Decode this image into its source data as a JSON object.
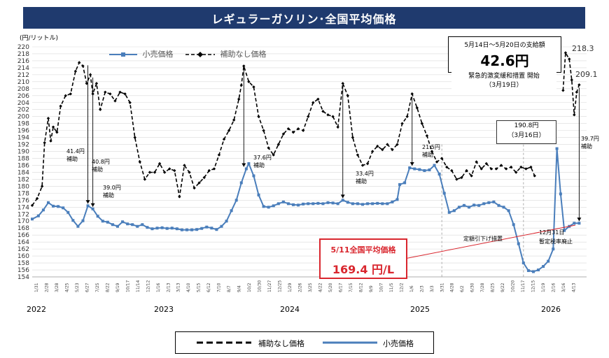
{
  "title": "レギュラーガソリン･全国平均価格",
  "yaxis_unit": "(円/リットル)",
  "legend": {
    "retail": "小売価格",
    "no_subsidy": "補助なし価格"
  },
  "infobox_subsidy": {
    "line1": "5月14日～5月20日の支給額",
    "line2": "42.6円"
  },
  "infobox_emergency": {
    "line1": "緊急的激変緩和措置 開始",
    "line2": "（3月19日）"
  },
  "infobox_price190": {
    "line1": "190.8円",
    "line2": "（3月16日）"
  },
  "current_price": {
    "line1": "5/11全国平均価格",
    "line2": "169.4 円/L"
  },
  "annotations": {
    "a1": "41.4円",
    "a1b": "補助",
    "a2": "40.8円",
    "a2b": "補助",
    "a3": "39.0円",
    "a3b": "補助",
    "a4": "37.6円",
    "a4b": "補助",
    "a5": "33.4円",
    "a5b": "補助",
    "a6": "21.5円",
    "a6b": "補助",
    "a7": "39.7円",
    "a7b": "補助",
    "fixed_cut": "定額引下げ措置",
    "dec31": "12月31日",
    "tax_abolish": "暫定税率廃止",
    "peak1": "218.3",
    "peak2": "209.1"
  },
  "years": [
    "2022",
    "2023",
    "2024",
    "2025",
    "2026"
  ],
  "chart_data": {
    "type": "line",
    "title": "レギュラーガソリン･全国平均価格",
    "ylabel": "(円/リットル)",
    "ylim": [
      154,
      220
    ],
    "yticks": [
      154,
      156,
      158,
      160,
      162,
      164,
      166,
      168,
      170,
      172,
      174,
      176,
      178,
      180,
      182,
      184,
      186,
      188,
      190,
      192,
      194,
      196,
      198,
      200,
      202,
      204,
      206,
      208,
      210,
      212,
      214,
      216,
      218,
      220
    ],
    "x_range": [
      2022.0,
      2026.48
    ],
    "grid": true,
    "series": [
      {
        "name": "小売価格",
        "color": "#4a7ebb",
        "points": [
          [
            2022.0,
            170.6
          ],
          [
            2022.05,
            171.5
          ],
          [
            2022.09,
            173.2
          ],
          [
            2022.13,
            175.3
          ],
          [
            2022.17,
            174.3
          ],
          [
            2022.21,
            174.2
          ],
          [
            2022.25,
            173.8
          ],
          [
            2022.29,
            172.5
          ],
          [
            2022.33,
            170.2
          ],
          [
            2022.37,
            168.5
          ],
          [
            2022.41,
            170.1
          ],
          [
            2022.45,
            174.4
          ],
          [
            2022.49,
            173.5
          ],
          [
            2022.53,
            171.4
          ],
          [
            2022.57,
            170.0
          ],
          [
            2022.61,
            169.7
          ],
          [
            2022.65,
            169.0
          ],
          [
            2022.69,
            168.5
          ],
          [
            2022.73,
            169.8
          ],
          [
            2022.77,
            169.2
          ],
          [
            2022.81,
            169.0
          ],
          [
            2022.85,
            168.5
          ],
          [
            2022.89,
            169.0
          ],
          [
            2022.93,
            168.2
          ],
          [
            2022.97,
            167.8
          ],
          [
            2023.01,
            168.0
          ],
          [
            2023.05,
            168.1
          ],
          [
            2023.09,
            167.9
          ],
          [
            2023.13,
            168.0
          ],
          [
            2023.17,
            167.8
          ],
          [
            2023.21,
            167.5
          ],
          [
            2023.25,
            167.5
          ],
          [
            2023.29,
            167.5
          ],
          [
            2023.33,
            167.6
          ],
          [
            2023.37,
            167.9
          ],
          [
            2023.41,
            168.3
          ],
          [
            2023.45,
            168.0
          ],
          [
            2023.49,
            167.6
          ],
          [
            2023.53,
            168.5
          ],
          [
            2023.57,
            170.0
          ],
          [
            2023.61,
            173.0
          ],
          [
            2023.65,
            176.0
          ],
          [
            2023.69,
            181.0
          ],
          [
            2023.73,
            185.0
          ],
          [
            2023.75,
            186.5
          ],
          [
            2023.79,
            183.0
          ],
          [
            2023.83,
            177.5
          ],
          [
            2023.87,
            174.2
          ],
          [
            2023.91,
            174.0
          ],
          [
            2023.95,
            174.4
          ],
          [
            2023.99,
            175.0
          ],
          [
            2024.03,
            175.5
          ],
          [
            2024.07,
            175.0
          ],
          [
            2024.11,
            174.7
          ],
          [
            2024.15,
            174.6
          ],
          [
            2024.19,
            174.9
          ],
          [
            2024.23,
            175.0
          ],
          [
            2024.27,
            175.0
          ],
          [
            2024.31,
            175.1
          ],
          [
            2024.35,
            175.0
          ],
          [
            2024.39,
            175.3
          ],
          [
            2024.43,
            175.2
          ],
          [
            2024.47,
            175.0
          ],
          [
            2024.51,
            176.0
          ],
          [
            2024.55,
            175.4
          ],
          [
            2024.59,
            175.0
          ],
          [
            2024.63,
            175.0
          ],
          [
            2024.67,
            174.8
          ],
          [
            2024.71,
            175.0
          ],
          [
            2024.75,
            175.0
          ],
          [
            2024.79,
            175.1
          ],
          [
            2024.83,
            175.0
          ],
          [
            2024.87,
            175.0
          ],
          [
            2024.91,
            175.5
          ],
          [
            2024.95,
            176.2
          ],
          [
            2024.97,
            180.5
          ],
          [
            2025.01,
            181.0
          ],
          [
            2025.05,
            185.3
          ],
          [
            2025.09,
            185.0
          ],
          [
            2025.13,
            184.8
          ],
          [
            2025.17,
            184.5
          ],
          [
            2025.21,
            184.7
          ],
          [
            2025.25,
            186.0
          ],
          [
            2025.29,
            183.5
          ],
          [
            2025.33,
            178.0
          ],
          [
            2025.37,
            172.5
          ],
          [
            2025.41,
            173.0
          ],
          [
            2025.45,
            174.0
          ],
          [
            2025.49,
            174.5
          ],
          [
            2025.53,
            174.0
          ],
          [
            2025.57,
            174.6
          ],
          [
            2025.61,
            174.5
          ],
          [
            2025.65,
            175.0
          ],
          [
            2025.69,
            175.3
          ],
          [
            2025.73,
            175.5
          ],
          [
            2025.77,
            174.5
          ],
          [
            2025.81,
            174.0
          ],
          [
            2025.85,
            173.0
          ],
          [
            2025.89,
            169.0
          ],
          [
            2025.93,
            163.5
          ],
          [
            2025.97,
            158.0
          ],
          [
            2026.01,
            155.8
          ],
          [
            2026.05,
            155.5
          ],
          [
            2026.09,
            156.0
          ],
          [
            2026.13,
            157.0
          ],
          [
            2026.17,
            158.5
          ],
          [
            2026.21,
            162.0
          ],
          [
            2026.24,
            190.8
          ],
          [
            2026.27,
            177.8
          ],
          [
            2026.3,
            167.3
          ],
          [
            2026.34,
            168.5
          ],
          [
            2026.38,
            169.4
          ],
          [
            2026.42,
            169.4
          ]
        ]
      },
      {
        "name": "補助なし価格",
        "color": "#000000",
        "dashed": true,
        "points": [
          [
            2022.0,
            174.5
          ],
          [
            2022.04,
            176.5
          ],
          [
            2022.08,
            180.0
          ],
          [
            2022.1,
            192.5
          ],
          [
            2022.13,
            199.5
          ],
          [
            2022.15,
            193.0
          ],
          [
            2022.17,
            197.0
          ],
          [
            2022.2,
            195.5
          ],
          [
            2022.23,
            203.0
          ],
          [
            2022.27,
            206.0
          ],
          [
            2022.31,
            206.5
          ],
          [
            2022.35,
            213.0
          ],
          [
            2022.38,
            215.5
          ],
          [
            2022.41,
            214.5
          ],
          [
            2022.44,
            209.5
          ],
          [
            2022.47,
            212.0
          ],
          [
            2022.49,
            206.5
          ],
          [
            2022.52,
            209.5
          ],
          [
            2022.55,
            202.0
          ],
          [
            2022.59,
            207.0
          ],
          [
            2022.63,
            206.5
          ],
          [
            2022.67,
            204.5
          ],
          [
            2022.71,
            207.0
          ],
          [
            2022.75,
            206.5
          ],
          [
            2022.79,
            204.0
          ],
          [
            2022.83,
            194.0
          ],
          [
            2022.87,
            187.0
          ],
          [
            2022.91,
            182.0
          ],
          [
            2022.95,
            184.0
          ],
          [
            2022.99,
            184.0
          ],
          [
            2023.03,
            186.5
          ],
          [
            2023.07,
            184.0
          ],
          [
            2023.11,
            185.0
          ],
          [
            2023.15,
            184.5
          ],
          [
            2023.19,
            177.0
          ],
          [
            2023.23,
            186.0
          ],
          [
            2023.27,
            184.0
          ],
          [
            2023.31,
            179.5
          ],
          [
            2023.35,
            181.0
          ],
          [
            2023.39,
            182.5
          ],
          [
            2023.43,
            184.5
          ],
          [
            2023.47,
            185.0
          ],
          [
            2023.51,
            189.0
          ],
          [
            2023.55,
            193.5
          ],
          [
            2023.59,
            196.0
          ],
          [
            2023.63,
            199.0
          ],
          [
            2023.67,
            205.0
          ],
          [
            2023.69,
            209.0
          ],
          [
            2023.71,
            214.5
          ],
          [
            2023.75,
            210.0
          ],
          [
            2023.79,
            208.5
          ],
          [
            2023.83,
            200.0
          ],
          [
            2023.87,
            196.0
          ],
          [
            2023.91,
            191.0
          ],
          [
            2023.95,
            189.0
          ],
          [
            2023.99,
            192.0
          ],
          [
            2024.03,
            195.0
          ],
          [
            2024.07,
            196.5
          ],
          [
            2024.11,
            195.5
          ],
          [
            2024.15,
            196.5
          ],
          [
            2024.19,
            196.0
          ],
          [
            2024.23,
            200.0
          ],
          [
            2024.27,
            204.0
          ],
          [
            2024.31,
            205.0
          ],
          [
            2024.35,
            201.5
          ],
          [
            2024.39,
            200.5
          ],
          [
            2024.43,
            200.0
          ],
          [
            2024.47,
            197.0
          ],
          [
            2024.51,
            209.5
          ],
          [
            2024.55,
            206.0
          ],
          [
            2024.59,
            194.0
          ],
          [
            2024.63,
            189.0
          ],
          [
            2024.67,
            186.0
          ],
          [
            2024.71,
            186.5
          ],
          [
            2024.75,
            190.0
          ],
          [
            2024.79,
            191.5
          ],
          [
            2024.83,
            190.5
          ],
          [
            2024.87,
            192.0
          ],
          [
            2024.91,
            190.5
          ],
          [
            2024.95,
            192.0
          ],
          [
            2024.99,
            198.0
          ],
          [
            2025.03,
            200.0
          ],
          [
            2025.07,
            206.5
          ],
          [
            2025.11,
            202.5
          ],
          [
            2025.15,
            198.0
          ],
          [
            2025.19,
            194.5
          ],
          [
            2025.23,
            190.0
          ],
          [
            2025.27,
            187.0
          ],
          [
            2025.31,
            188.0
          ],
          [
            2025.35,
            185.5
          ],
          [
            2025.39,
            184.5
          ],
          [
            2025.43,
            182.0
          ],
          [
            2025.47,
            182.5
          ],
          [
            2025.51,
            184.5
          ],
          [
            2025.55,
            183.0
          ],
          [
            2025.59,
            187.0
          ],
          [
            2025.63,
            185.0
          ],
          [
            2025.67,
            186.5
          ],
          [
            2025.71,
            185.0
          ],
          [
            2025.75,
            185.0
          ],
          [
            2025.79,
            186.0
          ],
          [
            2025.83,
            185.0
          ],
          [
            2025.87,
            185.5
          ],
          [
            2025.91,
            184.0
          ],
          [
            2025.95,
            185.5
          ],
          [
            2025.99,
            185.0
          ],
          [
            2026.03,
            185.5
          ],
          [
            2026.06,
            183.0
          ],
          [
            2026.29,
            207.5
          ],
          [
            2026.31,
            218.3
          ],
          [
            2026.34,
            216.5
          ],
          [
            2026.36,
            210.5
          ],
          [
            2026.38,
            200.5
          ],
          [
            2026.4,
            207.0
          ],
          [
            2026.42,
            209.1
          ]
        ]
      }
    ]
  }
}
